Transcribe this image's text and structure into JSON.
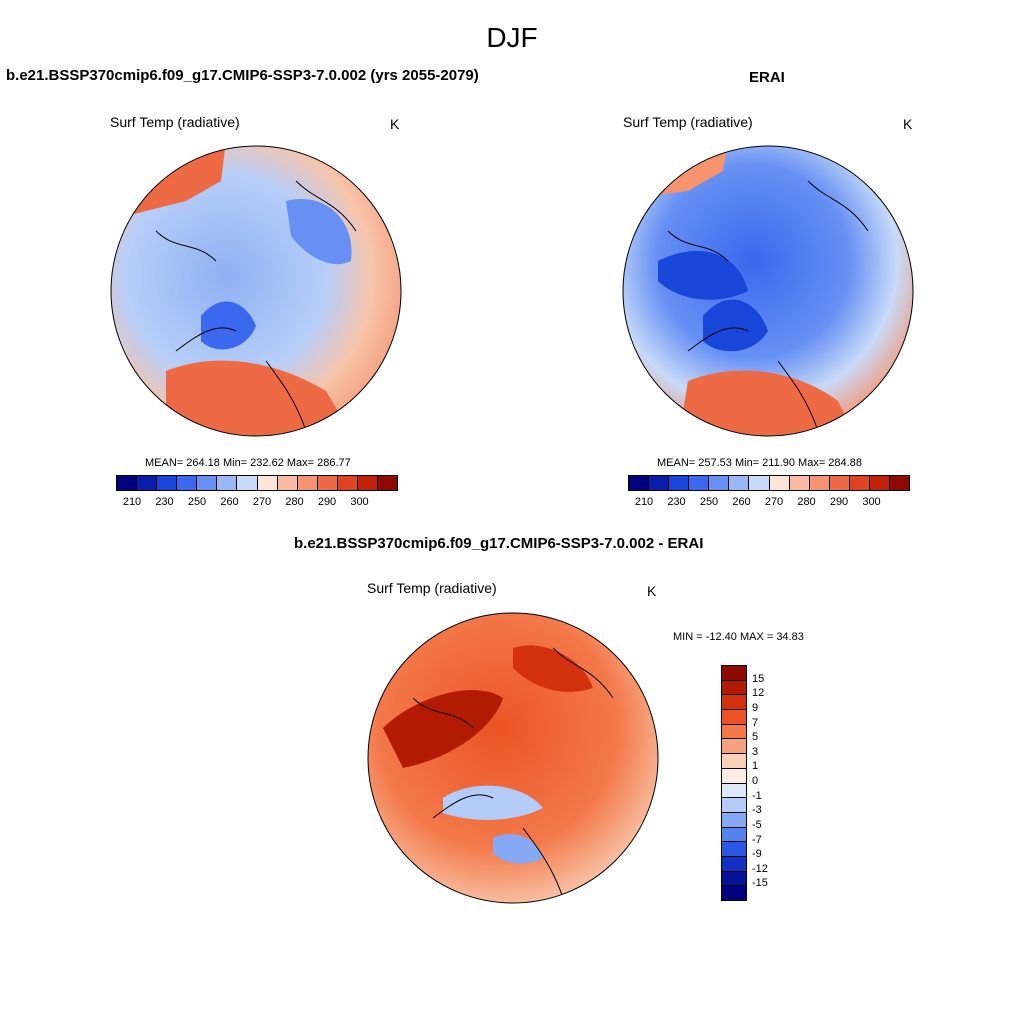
{
  "season": "DJF",
  "panels": [
    {
      "title": "b.e21.BSSP370cmip6.f09_g17.CMIP6-SSP3-7.0.002 (yrs 2055-2079)",
      "variable": "Surf Temp (radiative)",
      "units": "K",
      "stats": "MEAN= 264.18  Min= 232.62  Max= 286.77"
    },
    {
      "title": "ERAI",
      "variable": "Surf Temp (radiative)",
      "units": "K",
      "stats": "MEAN= 257.53  Min= 211.90  Max= 284.88"
    },
    {
      "title": "b.e21.BSSP370cmip6.f09_g17.CMIP6-SSP3-7.0.002 - ERAI",
      "variable": "Surf Temp (radiative)",
      "units": "K",
      "stats": "MIN = -12.40 MAX =  34.83"
    }
  ],
  "abs_colorbar": {
    "colors": [
      "#00007f",
      "#0a1eae",
      "#1846d8",
      "#3a68ee",
      "#6690f3",
      "#9ab6f6",
      "#c8daf9",
      "#fde5d8",
      "#f9bca3",
      "#f5946e",
      "#ee6a44",
      "#df431f",
      "#c02308",
      "#8c0a00"
    ],
    "labels": [
      "210",
      "230",
      "250",
      "260",
      "270",
      "280",
      "290",
      "300"
    ]
  },
  "diff_colorbar": {
    "colors": [
      "#8c0a00",
      "#b31a02",
      "#d3310d",
      "#ec5324",
      "#f3794a",
      "#f6a27e",
      "#fad0b8",
      "#fdece4",
      "#dde9fa",
      "#b4cdf8",
      "#85a9f4",
      "#5283ee",
      "#2a57e4",
      "#1130c4",
      "#05129a",
      "#00007f"
    ],
    "labels": [
      "15",
      "12",
      "9",
      "7",
      "5",
      "3",
      "1",
      "0",
      "-1",
      "-3",
      "-5",
      "-7",
      "-9",
      "-12",
      "-15"
    ]
  }
}
